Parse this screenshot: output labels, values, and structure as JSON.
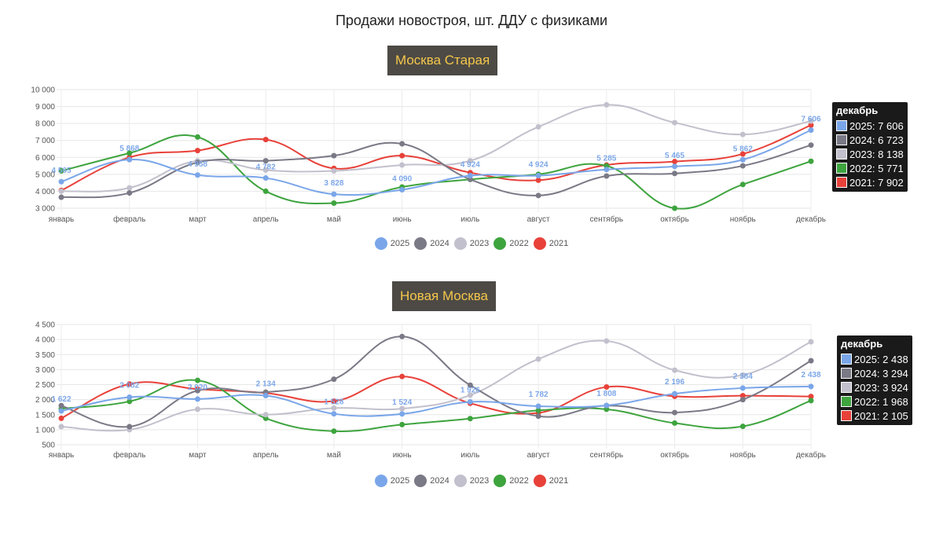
{
  "page_title": "Продажи новостроя, шт. ДДУ с физиками",
  "colors": {
    "2025": "#7aa6e9",
    "2024": "#7a7986",
    "2023": "#c2c0cc",
    "2022": "#3ea43e",
    "2021": "#e8413a"
  },
  "chart_data": [
    {
      "type": "line",
      "title": "Москва Старая",
      "categories": [
        "январь",
        "февраль",
        "март",
        "апрель",
        "май",
        "июнь",
        "июль",
        "август",
        "сентябрь",
        "октябрь",
        "ноябрь",
        "декабрь"
      ],
      "y_ticks": [
        "10 000",
        "9 000",
        "8 000",
        "7 000",
        "6 000",
        "5 000",
        "4 000",
        "3 000"
      ],
      "ylim": [
        3000,
        10000
      ],
      "grid": true,
      "legend": "bottom",
      "series": [
        {
          "name": "2025",
          "color": "#7aa6e9",
          "values": [
            4565,
            5868,
            4958,
            4782,
            3828,
            4090,
            4924,
            4924,
            5285,
            5465,
            5862,
            7606
          ],
          "labels": [
            "4 565",
            "5 868",
            "4 958",
            "4 782",
            "3 828",
            "4 090",
            "4 924",
            "4 924",
            "5 285",
            "5 465",
            "5 862",
            "7 606"
          ]
        },
        {
          "name": "2024",
          "color": "#7a7986",
          "values": [
            3650,
            3900,
            5700,
            5800,
            6100,
            6800,
            4700,
            3750,
            4900,
            5050,
            5500,
            6723
          ]
        },
        {
          "name": "2023",
          "color": "#c2c0cc",
          "values": [
            4000,
            4200,
            5800,
            5250,
            5200,
            5550,
            5800,
            7800,
            9100,
            8050,
            7350,
            8138
          ]
        },
        {
          "name": "2022",
          "color": "#3ea43e",
          "values": [
            5200,
            6250,
            7200,
            4000,
            3300,
            4250,
            4700,
            5000,
            5500,
            3000,
            4400,
            5771
          ]
        },
        {
          "name": "2021",
          "color": "#e8413a",
          "values": [
            4050,
            6000,
            6400,
            7050,
            5350,
            6100,
            5100,
            4650,
            5550,
            5750,
            6200,
            7902
          ]
        }
      ],
      "tooltip": {
        "title": "декабрь",
        "rows": [
          "2025: 7 606",
          "2024: 6 723",
          "2023: 8 138",
          "2022: 5 771",
          "2021: 7 902"
        ]
      }
    },
    {
      "type": "line",
      "title": "Новая Москва",
      "categories": [
        "январь",
        "февраль",
        "март",
        "апрель",
        "май",
        "июнь",
        "июль",
        "август",
        "сентябрь",
        "октябрь",
        "ноябрь",
        "декабрь"
      ],
      "y_ticks": [
        "4 500",
        "4 000",
        "3 500",
        "3 000",
        "2 500",
        "2 000",
        "1 500",
        "1 000",
        "500"
      ],
      "ylim": [
        500,
        4500
      ],
      "grid": true,
      "legend": "bottom",
      "series": [
        {
          "name": "2025",
          "color": "#7aa6e9",
          "values": [
            1622,
            2082,
            2020,
            2134,
            1528,
            1524,
            1926,
            1782,
            1808,
            2196,
            2384,
            2438
          ],
          "labels": [
            "1 622",
            "2 082",
            "2 020",
            "2 134",
            "1 528",
            "1 524",
            "1 926",
            "1 782",
            "1 808",
            "2 196",
            "2 384",
            "2 438"
          ]
        },
        {
          "name": "2024",
          "color": "#7a7986",
          "values": [
            1800,
            1100,
            2300,
            2250,
            2680,
            4100,
            2480,
            1450,
            1800,
            1570,
            2000,
            3294
          ]
        },
        {
          "name": "2023",
          "color": "#c2c0cc",
          "values": [
            1100,
            1000,
            1680,
            1500,
            1720,
            1700,
            2150,
            3350,
            3950,
            2980,
            2820,
            3924
          ]
        },
        {
          "name": "2022",
          "color": "#3ea43e",
          "values": [
            1700,
            1940,
            2640,
            1380,
            950,
            1170,
            1370,
            1640,
            1680,
            1220,
            1110,
            1968
          ]
        },
        {
          "name": "2021",
          "color": "#e8413a",
          "values": [
            1380,
            2520,
            2350,
            2220,
            1950,
            2770,
            1880,
            1560,
            2420,
            2110,
            2130,
            2105
          ]
        }
      ],
      "tooltip": {
        "title": "декабрь",
        "rows": [
          "2025: 2 438",
          "2024: 3 294",
          "2023: 3 924",
          "2022: 1 968",
          "2021: 2 105"
        ]
      }
    }
  ]
}
